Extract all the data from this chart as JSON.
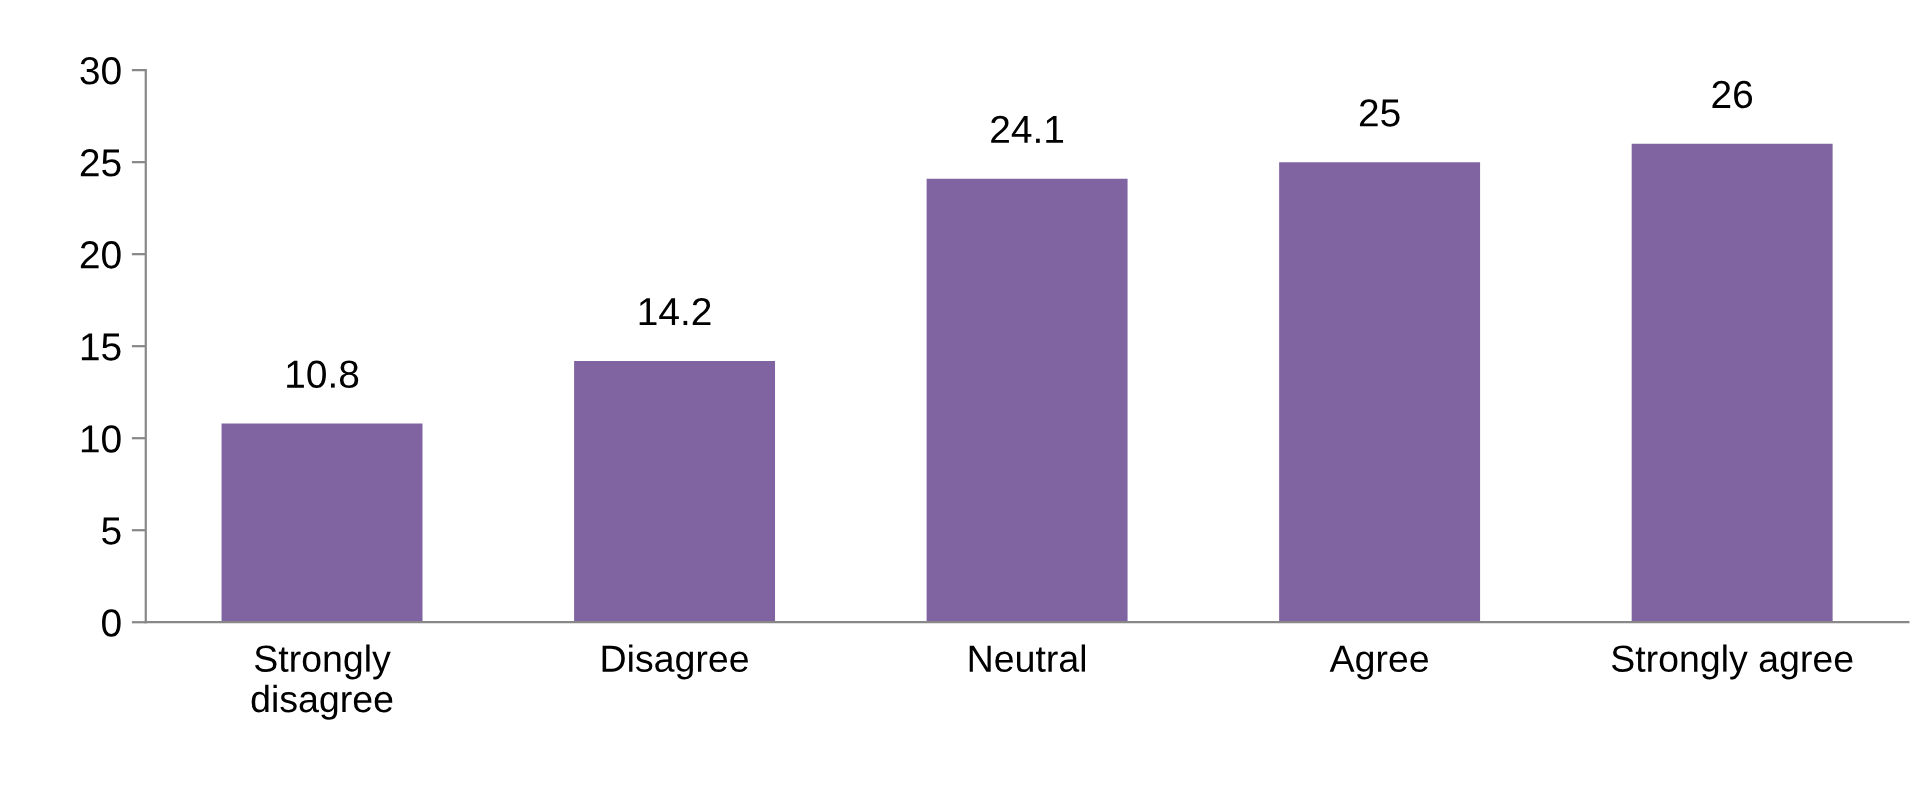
{
  "chart_data": {
    "type": "bar",
    "categories": [
      "Strongly\ndisagree",
      "Disagree",
      "Neutral",
      "Agree",
      "Strongly agree"
    ],
    "values": [
      10.8,
      14.2,
      24.1,
      25,
      26
    ],
    "color": "#8064a2",
    "ylim": [
      0,
      30
    ],
    "yticks": [
      0,
      5,
      10,
      15,
      20,
      25,
      30
    ],
    "data_labels": true,
    "grid": false,
    "legend": false
  }
}
